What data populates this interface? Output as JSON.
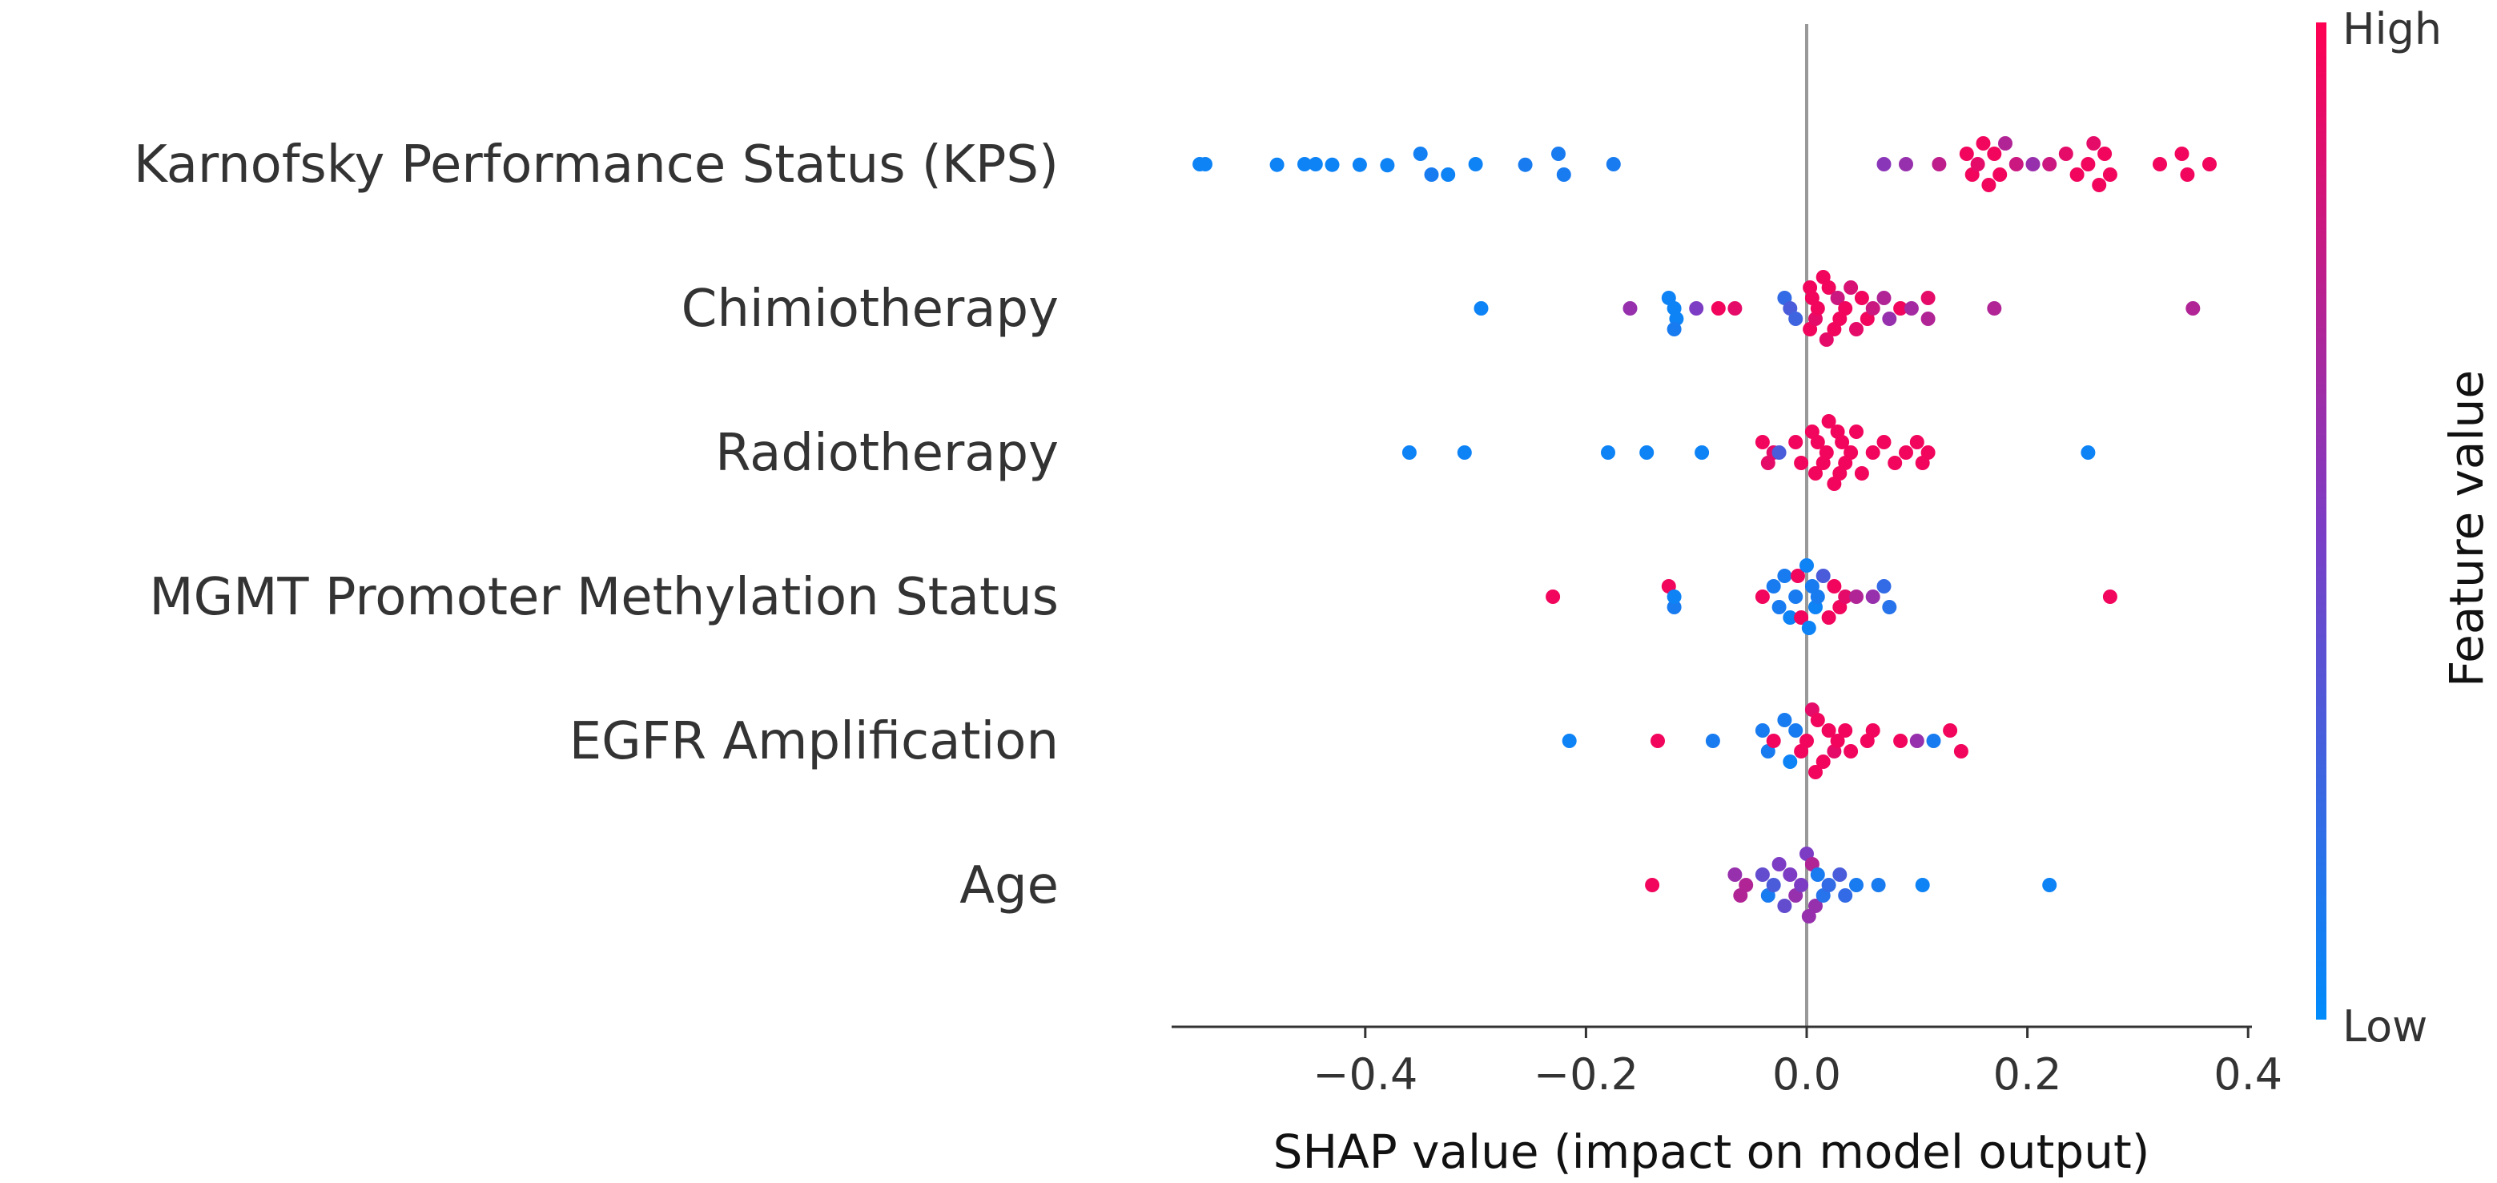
{
  "chart_data": {
    "type": "scatter",
    "subtype": "shap-beeswarm",
    "title": "",
    "xlabel": "SHAP value (impact on model output)",
    "ylabel": "",
    "xlim": [
      -0.58,
      0.41
    ],
    "x_ticks": [
      -0.4,
      -0.2,
      0.0,
      0.2,
      0.4
    ],
    "x_tick_labels": [
      "−0.4",
      "−0.2",
      "0.0",
      "0.2",
      "0.4"
    ],
    "colorbar": {
      "title": "Feature value",
      "high_label": "High",
      "low_label": "Low",
      "high_color": "#ff0052",
      "low_color": "#008bfb"
    },
    "features": [
      {
        "name": "Karnofsky Performance Status (KPS)",
        "points": [
          [
            -0.55,
            0.05,
            0
          ],
          [
            -0.545,
            0.05,
            0
          ],
          [
            -0.48,
            0.05,
            0.05
          ],
          [
            -0.455,
            0.05,
            0
          ],
          [
            -0.445,
            0.05,
            0
          ],
          [
            -0.43,
            0.05,
            0.05
          ],
          [
            -0.405,
            0.05,
            0.05
          ],
          [
            -0.38,
            0.05,
            0.1
          ],
          [
            -0.35,
            0.07,
            -1
          ],
          [
            -0.34,
            0.1,
            1
          ],
          [
            -0.325,
            0.05,
            1
          ],
          [
            -0.3,
            0.05,
            0
          ],
          [
            -0.255,
            0.1,
            0.05
          ],
          [
            -0.225,
            0.1,
            -1
          ],
          [
            -0.22,
            0.1,
            1
          ],
          [
            -0.175,
            0.1,
            0
          ],
          [
            0.07,
            0.55,
            0
          ],
          [
            0.09,
            0.6,
            0
          ],
          [
            0.12,
            0.75,
            0
          ],
          [
            0.145,
            0.95,
            -1
          ],
          [
            0.15,
            0.95,
            1
          ],
          [
            0.155,
            0.9,
            0
          ],
          [
            0.16,
            0.95,
            -2
          ],
          [
            0.165,
            0.95,
            2
          ],
          [
            0.17,
            0.95,
            -1
          ],
          [
            0.175,
            0.95,
            1
          ],
          [
            0.18,
            0.7,
            -2
          ],
          [
            0.19,
            0.8,
            0
          ],
          [
            0.205,
            0.6,
            0
          ],
          [
            0.22,
            0.8,
            0
          ],
          [
            0.235,
            0.9,
            -1
          ],
          [
            0.245,
            0.95,
            1
          ],
          [
            0.255,
            0.95,
            0
          ],
          [
            0.26,
            0.9,
            -2
          ],
          [
            0.265,
            0.95,
            2
          ],
          [
            0.27,
            0.95,
            -1
          ],
          [
            0.275,
            0.95,
            1
          ],
          [
            0.32,
            0.95,
            0
          ],
          [
            0.34,
            0.95,
            -1
          ],
          [
            0.345,
            0.95,
            1
          ],
          [
            0.365,
            0.95,
            0
          ]
        ]
      },
      {
        "name": "Chimiotherapy",
        "points": [
          [
            -0.295,
            0.05,
            0
          ],
          [
            -0.16,
            0.6,
            0
          ],
          [
            -0.125,
            0.05,
            -1
          ],
          [
            -0.12,
            0.05,
            0
          ],
          [
            -0.118,
            0.05,
            1
          ],
          [
            -0.12,
            0.1,
            2
          ],
          [
            -0.1,
            0.5,
            0
          ],
          [
            -0.08,
            0.95,
            0
          ],
          [
            -0.065,
            0.9,
            0
          ],
          [
            -0.02,
            0.2,
            -1
          ],
          [
            -0.015,
            0.3,
            0
          ],
          [
            -0.01,
            0.25,
            1
          ],
          [
            0.003,
            0.95,
            -2
          ],
          [
            0.003,
            0.95,
            2
          ],
          [
            0.005,
            0.95,
            -1
          ],
          [
            0.008,
            0.9,
            1
          ],
          [
            0.01,
            0.95,
            0
          ],
          [
            0.015,
            0.95,
            -3
          ],
          [
            0.018,
            0.9,
            3
          ],
          [
            0.02,
            0.95,
            -2
          ],
          [
            0.025,
            0.95,
            2
          ],
          [
            0.028,
            0.8,
            -1
          ],
          [
            0.03,
            0.95,
            1
          ],
          [
            0.035,
            0.95,
            0
          ],
          [
            0.04,
            0.85,
            -2
          ],
          [
            0.045,
            0.9,
            2
          ],
          [
            0.05,
            0.95,
            -1
          ],
          [
            0.055,
            0.95,
            1
          ],
          [
            0.06,
            0.8,
            0
          ],
          [
            0.07,
            0.7,
            -1
          ],
          [
            0.075,
            0.6,
            1
          ],
          [
            0.085,
            0.95,
            0
          ],
          [
            0.095,
            0.65,
            0
          ],
          [
            0.11,
            0.9,
            -1
          ],
          [
            0.11,
            0.7,
            1
          ],
          [
            0.17,
            0.7,
            0
          ],
          [
            0.35,
            0.7,
            0
          ]
        ]
      },
      {
        "name": "Radiotherapy",
        "points": [
          [
            -0.36,
            0.05,
            0
          ],
          [
            -0.31,
            0.05,
            0
          ],
          [
            -0.18,
            0.05,
            0
          ],
          [
            -0.145,
            0.05,
            0
          ],
          [
            -0.095,
            0.05,
            0
          ],
          [
            -0.04,
            0.95,
            -1
          ],
          [
            -0.035,
            0.9,
            1
          ],
          [
            -0.03,
            0.9,
            0
          ],
          [
            -0.025,
            0.3,
            0
          ],
          [
            -0.01,
            0.95,
            -1
          ],
          [
            -0.005,
            0.95,
            1
          ],
          [
            0.005,
            0.95,
            -2
          ],
          [
            0.008,
            0.95,
            2
          ],
          [
            0.01,
            0.95,
            -1
          ],
          [
            0.015,
            0.95,
            1
          ],
          [
            0.018,
            0.95,
            0
          ],
          [
            0.02,
            0.95,
            -3
          ],
          [
            0.025,
            0.95,
            3
          ],
          [
            0.028,
            0.95,
            -2
          ],
          [
            0.03,
            0.95,
            2
          ],
          [
            0.032,
            0.95,
            -1
          ],
          [
            0.035,
            0.95,
            1
          ],
          [
            0.04,
            0.95,
            0
          ],
          [
            0.045,
            0.95,
            -2
          ],
          [
            0.05,
            0.95,
            2
          ],
          [
            0.06,
            0.95,
            0
          ],
          [
            0.07,
            0.95,
            -1
          ],
          [
            0.08,
            0.95,
            1
          ],
          [
            0.09,
            0.95,
            0
          ],
          [
            0.1,
            0.95,
            -1
          ],
          [
            0.105,
            0.95,
            1
          ],
          [
            0.11,
            0.95,
            0
          ],
          [
            0.255,
            0.05,
            0
          ]
        ]
      },
      {
        "name": "MGMT Promoter Methylation Status",
        "points": [
          [
            -0.23,
            0.95,
            0
          ],
          [
            -0.125,
            0.95,
            -1
          ],
          [
            -0.12,
            0.1,
            1
          ],
          [
            -0.12,
            0.05,
            0
          ],
          [
            -0.04,
            0.95,
            0
          ],
          [
            -0.03,
            0.1,
            -1
          ],
          [
            -0.025,
            0.1,
            1
          ],
          [
            -0.02,
            0.1,
            -2
          ],
          [
            -0.015,
            0.05,
            2
          ],
          [
            -0.01,
            0.1,
            0
          ],
          [
            -0.008,
            0.95,
            -2
          ],
          [
            -0.005,
            0.95,
            2
          ],
          [
            0.0,
            0.05,
            -3
          ],
          [
            0.002,
            0.05,
            3
          ],
          [
            0.005,
            0.1,
            -1
          ],
          [
            0.008,
            0.05,
            1
          ],
          [
            0.01,
            0.1,
            0
          ],
          [
            0.015,
            0.3,
            -2
          ],
          [
            0.02,
            0.95,
            2
          ],
          [
            0.025,
            0.95,
            -1
          ],
          [
            0.03,
            0.95,
            1
          ],
          [
            0.035,
            0.9,
            0
          ],
          [
            0.045,
            0.7,
            0
          ],
          [
            0.06,
            0.6,
            0
          ],
          [
            0.07,
            0.2,
            -1
          ],
          [
            0.075,
            0.15,
            1
          ],
          [
            0.275,
            0.95,
            0
          ]
        ]
      },
      {
        "name": "EGFR Amplification",
        "points": [
          [
            -0.215,
            0.05,
            0
          ],
          [
            -0.135,
            0.95,
            0
          ],
          [
            -0.085,
            0.1,
            0
          ],
          [
            -0.04,
            0.1,
            -1
          ],
          [
            -0.035,
            0.1,
            1
          ],
          [
            -0.03,
            0.95,
            0
          ],
          [
            -0.02,
            0.1,
            -2
          ],
          [
            -0.015,
            0.05,
            2
          ],
          [
            -0.01,
            0.1,
            -1
          ],
          [
            -0.005,
            0.95,
            1
          ],
          [
            0.0,
            0.95,
            0
          ],
          [
            0.005,
            0.9,
            -3
          ],
          [
            0.008,
            0.95,
            3
          ],
          [
            0.01,
            0.95,
            -2
          ],
          [
            0.015,
            0.95,
            2
          ],
          [
            0.02,
            0.95,
            -1
          ],
          [
            0.025,
            0.9,
            1
          ],
          [
            0.028,
            0.95,
            0
          ],
          [
            0.035,
            0.95,
            -1
          ],
          [
            0.04,
            0.95,
            1
          ],
          [
            0.055,
            0.95,
            0
          ],
          [
            0.06,
            0.95,
            -1
          ],
          [
            0.085,
            0.95,
            0
          ],
          [
            0.1,
            0.6,
            0
          ],
          [
            0.115,
            0.1,
            0
          ],
          [
            0.13,
            0.95,
            -1
          ],
          [
            0.14,
            0.95,
            1
          ]
        ]
      },
      {
        "name": "Age",
        "points": [
          [
            -0.14,
            0.95,
            0
          ],
          [
            -0.065,
            0.6,
            -1
          ],
          [
            -0.06,
            0.7,
            1
          ],
          [
            -0.055,
            0.7,
            0
          ],
          [
            -0.04,
            0.4,
            -1
          ],
          [
            -0.035,
            0.1,
            1
          ],
          [
            -0.03,
            0.3,
            0
          ],
          [
            -0.025,
            0.5,
            -2
          ],
          [
            -0.02,
            0.4,
            2
          ],
          [
            -0.015,
            0.5,
            -1
          ],
          [
            -0.01,
            0.6,
            1
          ],
          [
            -0.005,
            0.5,
            0
          ],
          [
            0.0,
            0.5,
            -3
          ],
          [
            0.002,
            0.6,
            3
          ],
          [
            0.005,
            0.7,
            -2
          ],
          [
            0.008,
            0.6,
            2
          ],
          [
            0.01,
            0.1,
            -1
          ],
          [
            0.015,
            0.15,
            1
          ],
          [
            0.02,
            0.2,
            0
          ],
          [
            0.03,
            0.3,
            -1
          ],
          [
            0.035,
            0.2,
            1
          ],
          [
            0.045,
            0.1,
            0
          ],
          [
            0.065,
            0.1,
            0
          ],
          [
            0.105,
            0.05,
            0
          ],
          [
            0.22,
            0.05,
            0
          ]
        ]
      }
    ]
  }
}
